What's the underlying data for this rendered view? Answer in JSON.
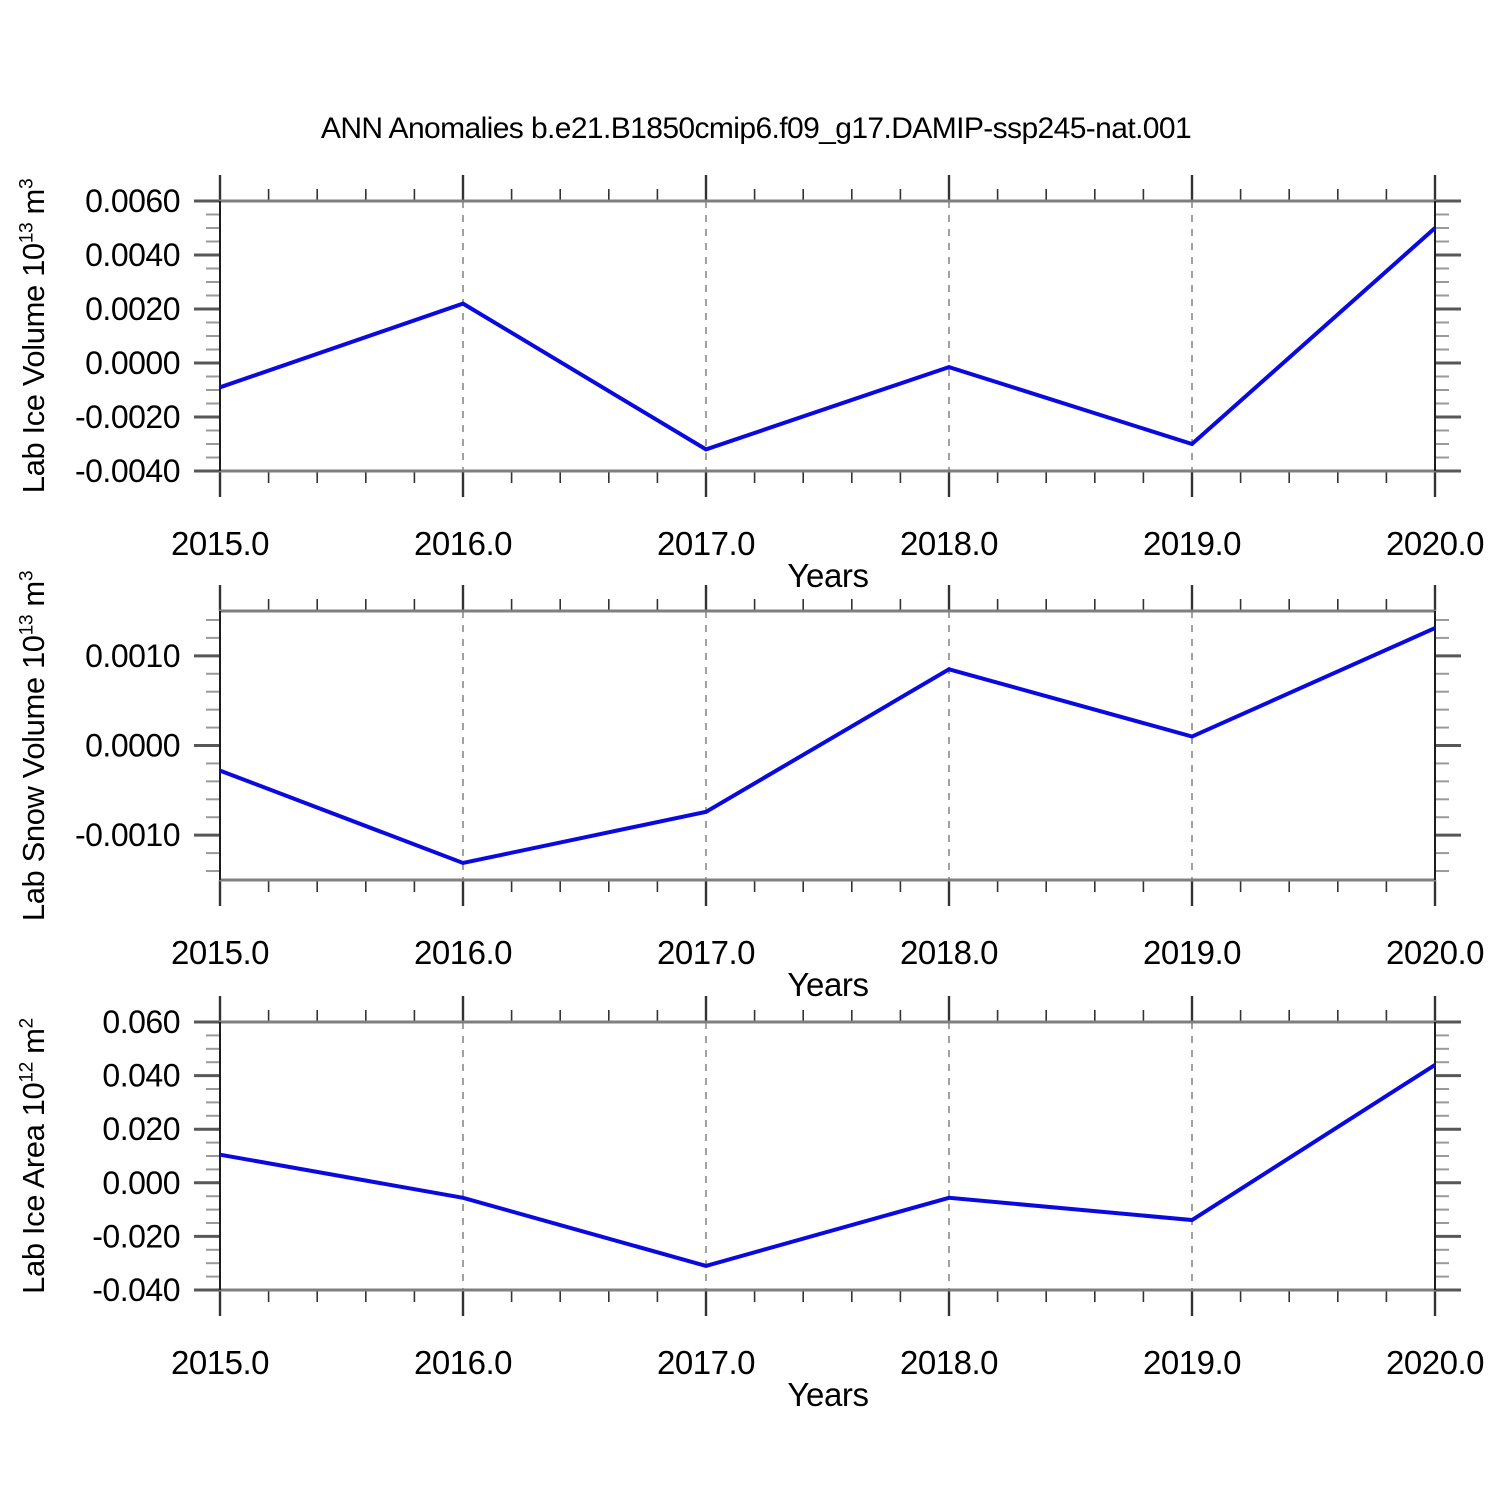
{
  "title": "ANN Anomalies b.e21.B1850cmip6.f09_g17.DAMIP-ssp245-nat.001",
  "x_axis": {
    "label": "Years",
    "tick_labels": [
      "2015.0",
      "2016.0",
      "2017.0",
      "2018.0",
      "2019.0",
      "2020.0"
    ],
    "tick_values": [
      2015,
      2016,
      2017,
      2018,
      2019,
      2020
    ],
    "range": [
      2015,
      2020
    ],
    "minor_step": 0.2,
    "gridlines": "dashed-vertical-at-years"
  },
  "colors": {
    "line": "#0a0ae0",
    "grid": "#8a8a8a",
    "border_horizontal": "#7f7f7f",
    "border_vertical": "#1c1c1c",
    "tick_major": "#575757",
    "tick_minor": "#9a9a9a",
    "x_tick": "#333333",
    "text": "#000000",
    "background": "#ffffff"
  },
  "chart_data": [
    {
      "type": "line",
      "name": "lab-ice-volume-anomaly",
      "ylabel": {
        "pre": "Lab Ice Volume 10",
        "sup1": "13",
        "mid": " m",
        "sup2": "3"
      },
      "xlabel": "Years",
      "x": [
        2015,
        2016,
        2017,
        2018,
        2019,
        2020
      ],
      "y": [
        -0.0009,
        0.0022,
        -0.0032,
        -0.00015,
        -0.003,
        0.005
      ],
      "ylim": [
        -0.004,
        0.006
      ],
      "ytick_values": [
        0.006,
        0.004,
        0.002,
        0.0,
        -0.002,
        -0.004
      ],
      "ytick_labels": [
        "0.0060",
        "0.0040",
        "0.0020",
        "0.0000",
        "-0.0020",
        "-0.0040"
      ],
      "y_minor_step": 0.0005,
      "legend": "none",
      "grid": "x-dashed"
    },
    {
      "type": "line",
      "name": "lab-snow-volume-anomaly",
      "ylabel": {
        "pre": "Lab Snow Volume 10",
        "sup1": "13",
        "mid": " m",
        "sup2": "3"
      },
      "xlabel": "Years",
      "x": [
        2015,
        2016,
        2017,
        2018,
        2019,
        2020
      ],
      "y": [
        -0.00028,
        -0.00131,
        -0.00074,
        0.00085,
        0.0001,
        0.00131
      ],
      "ylim": [
        -0.0015,
        0.0015
      ],
      "ytick_values": [
        0.001,
        0.0,
        -0.001
      ],
      "ytick_labels": [
        "0.0010",
        "0.0000",
        "-0.0010"
      ],
      "y_minor_step": 0.0002,
      "legend": "none",
      "grid": "x-dashed"
    },
    {
      "type": "line",
      "name": "lab-ice-area-anomaly",
      "ylabel": {
        "pre": "Lab Ice Area 10",
        "sup1": "12",
        "mid": " m",
        "sup2": "2"
      },
      "xlabel": "Years",
      "x": [
        2015,
        2016,
        2017,
        2018,
        2019,
        2020
      ],
      "y": [
        0.0105,
        -0.0056,
        -0.031,
        -0.0056,
        -0.0139,
        0.044
      ],
      "ylim": [
        -0.04,
        0.06
      ],
      "ytick_values": [
        0.06,
        0.04,
        0.02,
        0.0,
        -0.02,
        -0.04
      ],
      "ytick_labels": [
        "0.060",
        "0.040",
        "0.020",
        "0.000",
        "-0.020",
        "-0.040"
      ],
      "y_minor_step": 0.005,
      "legend": "none",
      "grid": "x-dashed"
    }
  ]
}
